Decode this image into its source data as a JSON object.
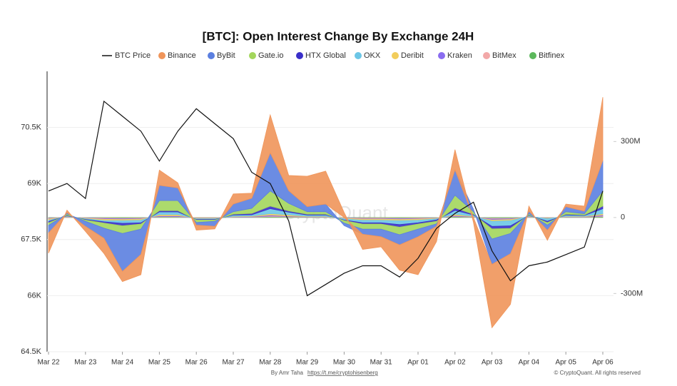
{
  "chart_data": {
    "type": "line",
    "title": "[BTC]: Open Interest Change By Exchange 24H",
    "credit": "By Amr Taha",
    "link": "https://t.me/cryptohisenberg",
    "copyright": "© CryptoQuant. All rights reserved",
    "watermark": "CryptoQuant",
    "stacked": true,
    "x": [
      0,
      0.5,
      1,
      1.5,
      2,
      2.5,
      3,
      3.5,
      4,
      4.5,
      5,
      5.5,
      6,
      6.5,
      7,
      7.5,
      8,
      8.5,
      9,
      9.5,
      10,
      10.5,
      11,
      11.5,
      12,
      12.5,
      13,
      13.5,
      14,
      14.5,
      15
    ],
    "xlim": [
      0,
      15
    ],
    "xticks": [
      {
        "value": 0,
        "label": "Mar 22"
      },
      {
        "value": 1,
        "label": "Mar 23"
      },
      {
        "value": 2,
        "label": "Mar 24"
      },
      {
        "value": 3,
        "label": "Mar 25"
      },
      {
        "value": 4,
        "label": "Mar 26"
      },
      {
        "value": 5,
        "label": "Mar 27"
      },
      {
        "value": 6,
        "label": "Mar 28"
      },
      {
        "value": 7,
        "label": "Mar 29"
      },
      {
        "value": 8,
        "label": "Mar 30"
      },
      {
        "value": 9,
        "label": "Mar 31"
      },
      {
        "value": 10,
        "label": "Apr 01"
      },
      {
        "value": 11,
        "label": "Apr 02"
      },
      {
        "value": 12,
        "label": "Apr 03"
      },
      {
        "value": 13,
        "label": "Apr 04"
      },
      {
        "value": 14,
        "label": "Apr 05"
      },
      {
        "value": 15,
        "label": "Apr 06"
      }
    ],
    "ylim": [
      64500,
      72000
    ],
    "yticks": [
      {
        "value": 64500,
        "label": "64.5K"
      },
      {
        "value": 66000,
        "label": "66K"
      },
      {
        "value": 67500,
        "label": "67.5K"
      },
      {
        "value": 69000,
        "label": "69K"
      },
      {
        "value": 70500,
        "label": "70.5K"
      }
    ],
    "y2lim": [
      -530,
      577
    ],
    "y2ticks": [
      {
        "value": -300,
        "label": "-300M"
      },
      0,
      {
        "value": 300,
        "label": "300M"
      }
    ],
    "series": [
      {
        "name": "BTC Price",
        "color": "#111111",
        "values": [
          68800,
          69000,
          68600,
          71200,
          70800,
          70400,
          69600,
          70400,
          71000,
          70600,
          70200,
          69300,
          69000,
          68000,
          66000,
          66300,
          66600,
          66800,
          66800,
          66500,
          67000,
          67800,
          68200,
          68500,
          67200,
          66400,
          66800,
          66900,
          67100,
          67300,
          68800
        ]
      },
      {
        "name": "Binance",
        "color": "#f0955a",
        "axis": "y2",
        "values": [
          -80,
          10,
          -20,
          -60,
          -40,
          -80,
          60,
          20,
          -20,
          -10,
          40,
          20,
          150,
          60,
          120,
          130,
          20,
          -60,
          -40,
          -100,
          -150,
          -60,
          80,
          -20,
          -250,
          -200,
          20,
          -40,
          10,
          20,
          250
        ]
      },
      {
        "name": "ByBit",
        "color": "#5b7fe0",
        "axis": "y2",
        "values": [
          -30,
          5,
          -20,
          -40,
          -150,
          -100,
          60,
          50,
          -10,
          -20,
          30,
          40,
          150,
          50,
          20,
          30,
          -10,
          -20,
          -30,
          -40,
          -30,
          -10,
          100,
          10,
          -100,
          -80,
          10,
          -20,
          20,
          10,
          120
        ]
      },
      {
        "name": "Gate.io",
        "color": "#a3d65c",
        "axis": "y2",
        "values": [
          -10,
          5,
          -5,
          -20,
          -30,
          -20,
          40,
          40,
          -10,
          -5,
          10,
          20,
          60,
          30,
          10,
          10,
          -10,
          -20,
          -20,
          -30,
          -20,
          -10,
          50,
          10,
          -40,
          -20,
          5,
          -10,
          10,
          5,
          60
        ]
      },
      {
        "name": "HTX Global",
        "color": "#3a2fc9",
        "axis": "y2",
        "values": [
          -5,
          2,
          -2,
          -5,
          -10,
          -5,
          5,
          5,
          -2,
          -2,
          3,
          5,
          10,
          5,
          3,
          3,
          -2,
          -5,
          -5,
          -10,
          -5,
          -5,
          10,
          3,
          -10,
          -10,
          2,
          -5,
          3,
          2,
          10
        ]
      },
      {
        "name": "OKX",
        "color": "#6cc6e6",
        "axis": "y2",
        "values": [
          -5,
          2,
          -3,
          -5,
          -10,
          -10,
          10,
          10,
          -3,
          -3,
          5,
          5,
          20,
          10,
          5,
          5,
          -5,
          -10,
          -10,
          -15,
          -10,
          -5,
          15,
          5,
          -20,
          -20,
          3,
          -10,
          5,
          3,
          20
        ]
      },
      {
        "name": "Deribit",
        "color": "#f2cd5c",
        "axis": "y2",
        "values": [
          -5,
          2,
          -2,
          -5,
          -5,
          -5,
          5,
          5,
          -2,
          -2,
          2,
          2,
          5,
          5,
          2,
          2,
          -2,
          -5,
          -5,
          -5,
          -5,
          -2,
          5,
          2,
          -5,
          -5,
          2,
          -2,
          2,
          2,
          5
        ]
      },
      {
        "name": "Kraken",
        "color": "#8a6cf0",
        "axis": "y2",
        "values": [
          -2,
          1,
          -1,
          -3,
          -3,
          -2,
          3,
          3,
          -1,
          -1,
          1,
          2,
          4,
          2,
          1,
          1,
          -1,
          -2,
          -2,
          -3,
          -2,
          -1,
          3,
          1,
          -4,
          -3,
          1,
          -1,
          1,
          1,
          4
        ]
      },
      {
        "name": "BitMex",
        "color": "#f2a8a8",
        "axis": "y2",
        "values": [
          -2,
          1,
          -1,
          -2,
          -2,
          -2,
          2,
          2,
          -1,
          -1,
          1,
          1,
          3,
          2,
          1,
          1,
          -1,
          -2,
          -2,
          -2,
          -2,
          -1,
          2,
          1,
          -3,
          -2,
          1,
          -1,
          1,
          1,
          3
        ]
      },
      {
        "name": "Bitfinex",
        "color": "#5cb85c",
        "axis": "y2",
        "values": [
          -2,
          1,
          -1,
          -2,
          -3,
          -2,
          2,
          2,
          -1,
          -1,
          1,
          1,
          3,
          2,
          1,
          1,
          -1,
          -2,
          -2,
          -3,
          -2,
          -1,
          3,
          1,
          -3,
          -3,
          1,
          -1,
          1,
          1,
          3
        ]
      }
    ]
  }
}
